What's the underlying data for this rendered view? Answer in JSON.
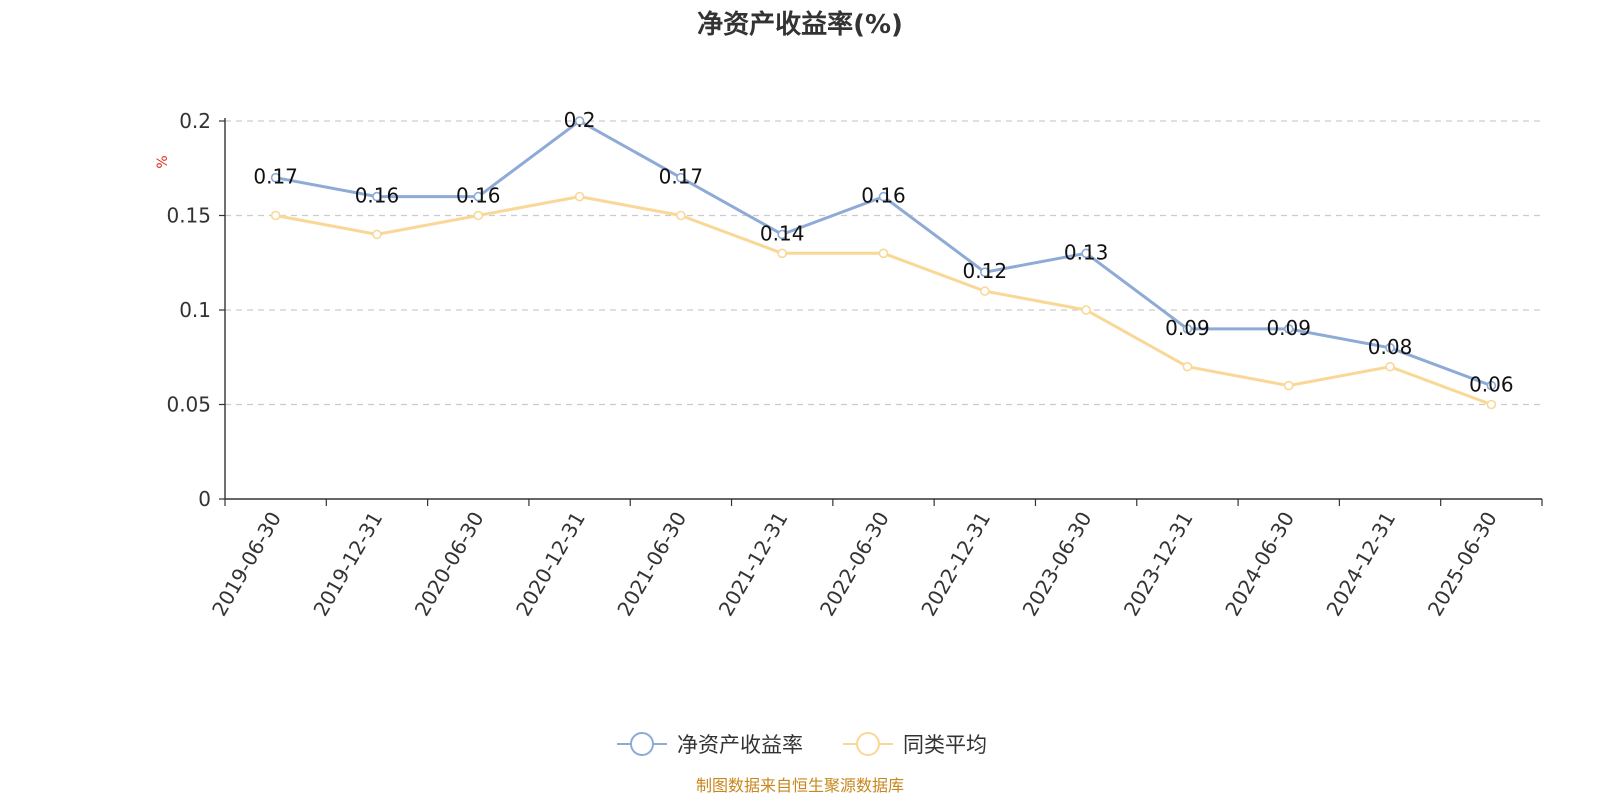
{
  "chart_data": {
    "type": "line",
    "title": "净资产收益率(%)",
    "unit_label": "%",
    "categories": [
      "2019-06-30",
      "2019-12-31",
      "2020-06-30",
      "2020-12-31",
      "2021-06-30",
      "2021-12-31",
      "2022-06-30",
      "2022-12-31",
      "2023-06-30",
      "2023-12-31",
      "2024-06-30",
      "2024-12-31",
      "2025-06-30"
    ],
    "y_ticks": [
      "0",
      "0.05",
      "0.1",
      "0.15",
      "0.2"
    ],
    "ylim": [
      0,
      0.2
    ],
    "grid": true,
    "legend_position": "bottom-center",
    "series": [
      {
        "name": "净资产收益率",
        "color": "#8eaad6",
        "values": [
          0.17,
          0.16,
          0.16,
          0.2,
          0.17,
          0.14,
          0.16,
          0.12,
          0.13,
          0.09,
          0.09,
          0.08,
          0.06
        ],
        "labels": [
          "0.17",
          "0.16",
          "0.16",
          "0.2",
          "0.17",
          "0.14",
          "0.16",
          "0.12",
          "0.13",
          "0.09",
          "0.09",
          "0.08",
          "0.06"
        ]
      },
      {
        "name": "同类平均",
        "color": "#f9d897",
        "values": [
          0.15,
          0.14,
          0.15,
          0.16,
          0.15,
          0.13,
          0.13,
          0.11,
          0.1,
          0.07,
          0.06,
          0.07,
          0.05
        ]
      }
    ]
  },
  "footer": {
    "source": "制图数据来自恒生聚源数据库"
  }
}
